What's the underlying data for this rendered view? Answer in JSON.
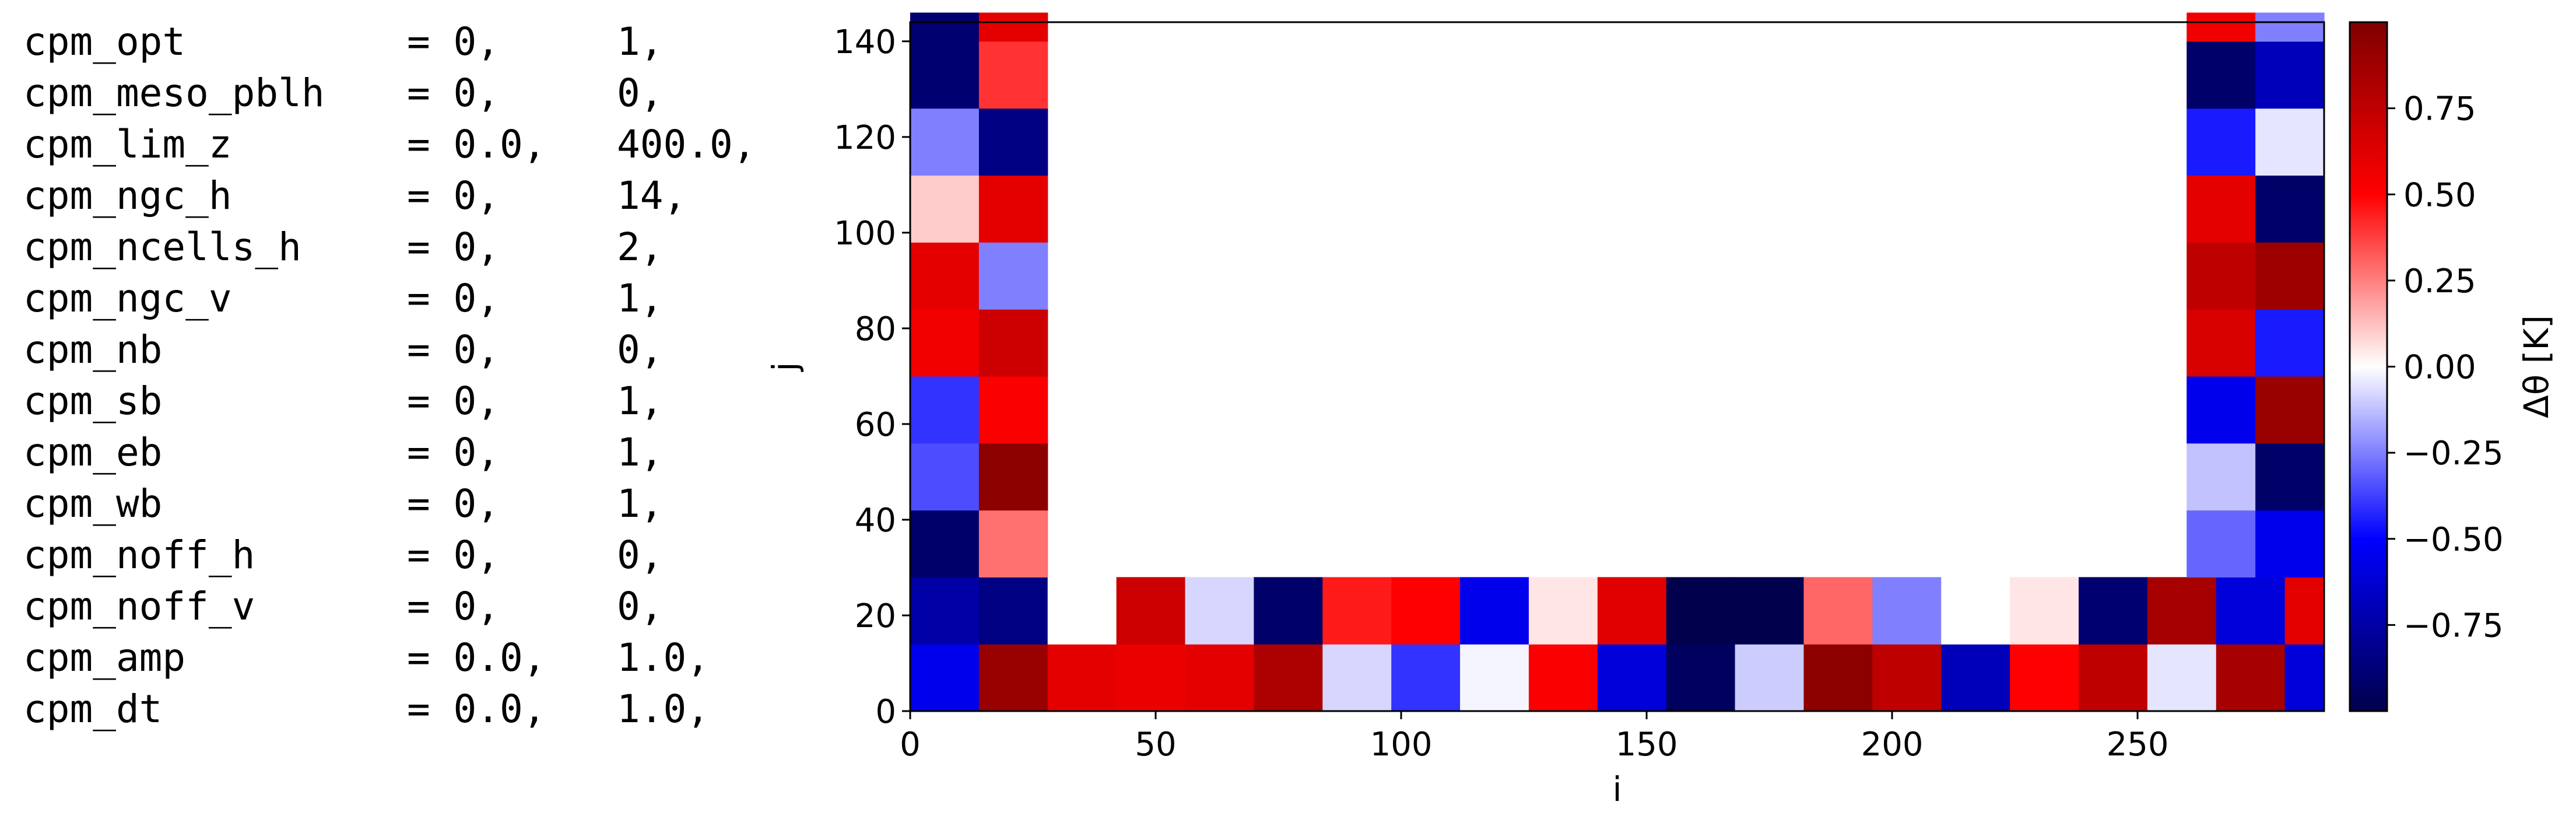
{
  "namelist": [
    {
      "key": "cpm_opt",
      "eq": "= 0,",
      "v2": "1,"
    },
    {
      "key": "cpm_meso_pblh",
      "eq": "= 0,",
      "v2": "0,"
    },
    {
      "key": "cpm_lim_z",
      "eq": "= 0.0,",
      "v2": "400.0,"
    },
    {
      "key": "cpm_ngc_h",
      "eq": "= 0,",
      "v2": "14,"
    },
    {
      "key": "cpm_ncells_h",
      "eq": "= 0,",
      "v2": "2,"
    },
    {
      "key": "cpm_ngc_v",
      "eq": "= 0,",
      "v2": "1,"
    },
    {
      "key": "cpm_nb",
      "eq": "= 0,",
      "v2": "0,"
    },
    {
      "key": "cpm_sb",
      "eq": "= 0,",
      "v2": "1,"
    },
    {
      "key": "cpm_eb",
      "eq": "= 0,",
      "v2": "1,"
    },
    {
      "key": "cpm_wb",
      "eq": "= 0,",
      "v2": "1,"
    },
    {
      "key": "cpm_noff_h",
      "eq": "= 0,",
      "v2": "0,"
    },
    {
      "key": "cpm_noff_v",
      "eq": "= 0,",
      "v2": "0,"
    },
    {
      "key": "cpm_amp",
      "eq": "= 0.0,",
      "v2": "1.0,"
    },
    {
      "key": "cpm_dt",
      "eq": "= 0.0,",
      "v2": "1.0,"
    }
  ],
  "chart_data": {
    "type": "heatmap",
    "title": "",
    "xlabel": "i",
    "ylabel": "j",
    "colorbar_label": "Δθ [K]",
    "xlim": [
      0,
      288
    ],
    "ylim": [
      0,
      144
    ],
    "xticks": [
      0,
      50,
      100,
      150,
      200,
      250
    ],
    "yticks": [
      0,
      20,
      40,
      60,
      80,
      100,
      120,
      140
    ],
    "colorbar_ticks": [
      -0.75,
      -0.5,
      -0.25,
      0.0,
      0.25,
      0.5,
      0.75
    ],
    "colorbar_tick_labels": [
      "−0.75",
      "−0.50",
      "−0.25",
      "0.00",
      "0.25",
      "0.50",
      "0.75"
    ],
    "vlim": [
      -1,
      1
    ],
    "colormap": "seismic",
    "cell_size": [
      14,
      14
    ],
    "interior_value": 0.0,
    "interior_region": {
      "i": [
        28,
        260
      ],
      "j": [
        28,
        144
      ]
    },
    "bottom_rows": [
      {
        "j0": 0,
        "values": [
          -0.55,
          0.9,
          0.6,
          0.58,
          0.6,
          0.82,
          -0.08,
          -0.4,
          -0.02,
          0.52,
          -0.6,
          -0.95,
          -0.1,
          0.95,
          0.75,
          -0.7,
          0.5,
          0.75,
          -0.05,
          0.85,
          -0.6
        ]
      },
      {
        "j0": 14,
        "values": [
          -0.75,
          -0.85,
          0.0,
          0.7,
          -0.08,
          -0.92,
          0.45,
          0.5,
          -0.55,
          0.05,
          0.62,
          -1.0,
          -1.0,
          0.3,
          -0.25,
          0.0,
          0.05,
          -0.9,
          0.85,
          -0.6,
          0.6
        ]
      }
    ],
    "left_columns": {
      "j0": 28,
      "col_i0": [
        0,
        14
      ],
      "values": [
        [
          -0.92,
          0.28
        ],
        [
          -0.35,
          0.95
        ],
        [
          -0.4,
          0.52
        ],
        [
          0.55,
          0.7
        ],
        [
          0.6,
          -0.25
        ],
        [
          0.1,
          0.6
        ],
        [
          -0.25,
          -0.85
        ],
        [
          -0.9,
          0.4
        ],
        [
          -0.9,
          0.6
        ]
      ]
    },
    "right_columns": {
      "j0": 28,
      "col_i0": [
        260,
        274
      ],
      "values": [
        [
          -0.3,
          -0.55
        ],
        [
          -0.12,
          -0.92
        ],
        [
          -0.55,
          0.9
        ],
        [
          0.65,
          -0.45
        ],
        [
          0.75,
          0.88
        ],
        [
          0.6,
          -0.92
        ],
        [
          -0.45,
          -0.05
        ],
        [
          -0.92,
          -0.7
        ],
        [
          0.55,
          -0.25
        ]
      ]
    }
  }
}
